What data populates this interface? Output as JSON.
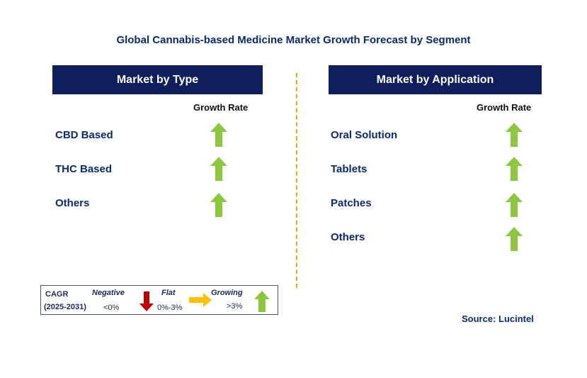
{
  "title": "Global Cannabis-based Medicine Market Growth Forecast by Segment",
  "colors": {
    "header_bg": "#0e1f5b",
    "arrow_up": "#8dc63f",
    "arrow_down": "#c00000",
    "arrow_flat": "#ffc000",
    "divider": "#f2a51a"
  },
  "left_panel": {
    "header": "Market by Type",
    "column_label": "Growth Rate",
    "rows": [
      {
        "label": "CBD Based",
        "trend": "growing"
      },
      {
        "label": "THC Based",
        "trend": "growing"
      },
      {
        "label": "Others",
        "trend": "growing"
      }
    ]
  },
  "right_panel": {
    "header": "Market by Application",
    "column_label": "Growth Rate",
    "rows": [
      {
        "label": "Oral Solution",
        "trend": "growing"
      },
      {
        "label": "Tablets",
        "trend": "growing"
      },
      {
        "label": "Patches",
        "trend": "growing"
      },
      {
        "label": "Others",
        "trend": "growing"
      }
    ]
  },
  "legend": {
    "cagr_label": "CAGR",
    "period": "(2025-2031)",
    "negative_label": "Negative",
    "negative_range": "<0%",
    "flat_label": "Flat",
    "flat_range": "0%-3%",
    "growing_label": "Growing",
    "growing_range": ">3%"
  },
  "source": "Source: Lucintel"
}
